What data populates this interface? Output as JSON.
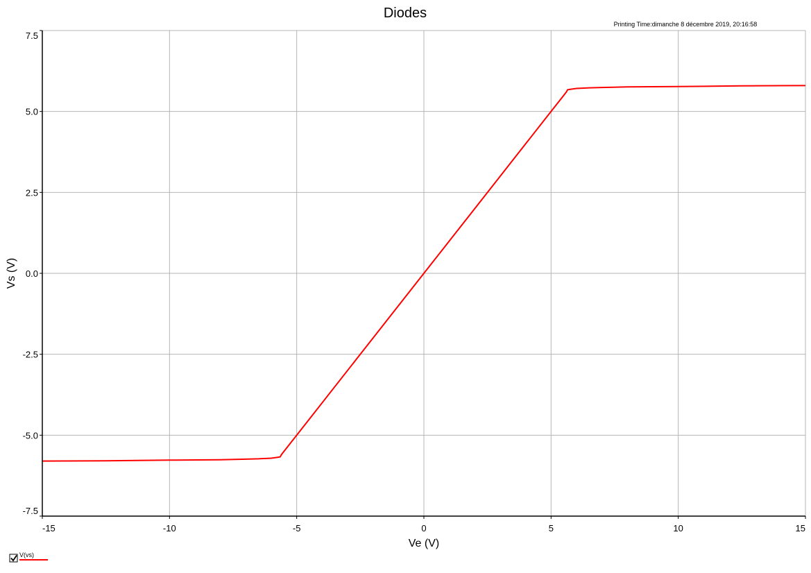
{
  "chart_data": {
    "type": "line",
    "title": "Diodes",
    "printing_time": "Printing Time:dimanche 8 décembre 2019, 20:16:58",
    "xlabel": "Ve (V)",
    "ylabel": "Vs (V)",
    "xlim": [
      -15,
      15
    ],
    "ylim": [
      -7.5,
      7.5
    ],
    "xticks": [
      -15,
      -10,
      -5,
      0,
      5,
      10,
      15
    ],
    "xtick_labels": [
      "-15",
      "-10",
      "-5",
      "0",
      "5",
      "10",
      "15"
    ],
    "yticks": [
      7.5,
      5.0,
      2.5,
      0.0,
      -2.5,
      -5.0,
      -7.5
    ],
    "ytick_labels": [
      "7.5",
      "5.0",
      "2.5",
      "0.0",
      "-2.5",
      "-5.0",
      "-7.5"
    ],
    "grid": true,
    "legend_position": "bottom-left",
    "series": [
      {
        "name": "V(vs)",
        "color": "#ff0000",
        "legend_checked": true,
        "x": [
          -15,
          -12.5,
          -10,
          -8,
          -7,
          -6.5,
          -6,
          -5.8,
          -5.65,
          -5.6,
          -5.5,
          -5,
          -2.5,
          0,
          2.5,
          5,
          5.5,
          5.6,
          5.65,
          5.8,
          6,
          6.5,
          7,
          8,
          10,
          12.5,
          15
        ],
        "y": [
          -5.8,
          -5.79,
          -5.77,
          -5.76,
          -5.74,
          -5.73,
          -5.71,
          -5.69,
          -5.67,
          -5.6,
          -5.5,
          -5.0,
          -2.5,
          0.0,
          2.5,
          5.0,
          5.5,
          5.6,
          5.67,
          5.69,
          5.71,
          5.73,
          5.74,
          5.76,
          5.77,
          5.79,
          5.8
        ]
      }
    ]
  }
}
